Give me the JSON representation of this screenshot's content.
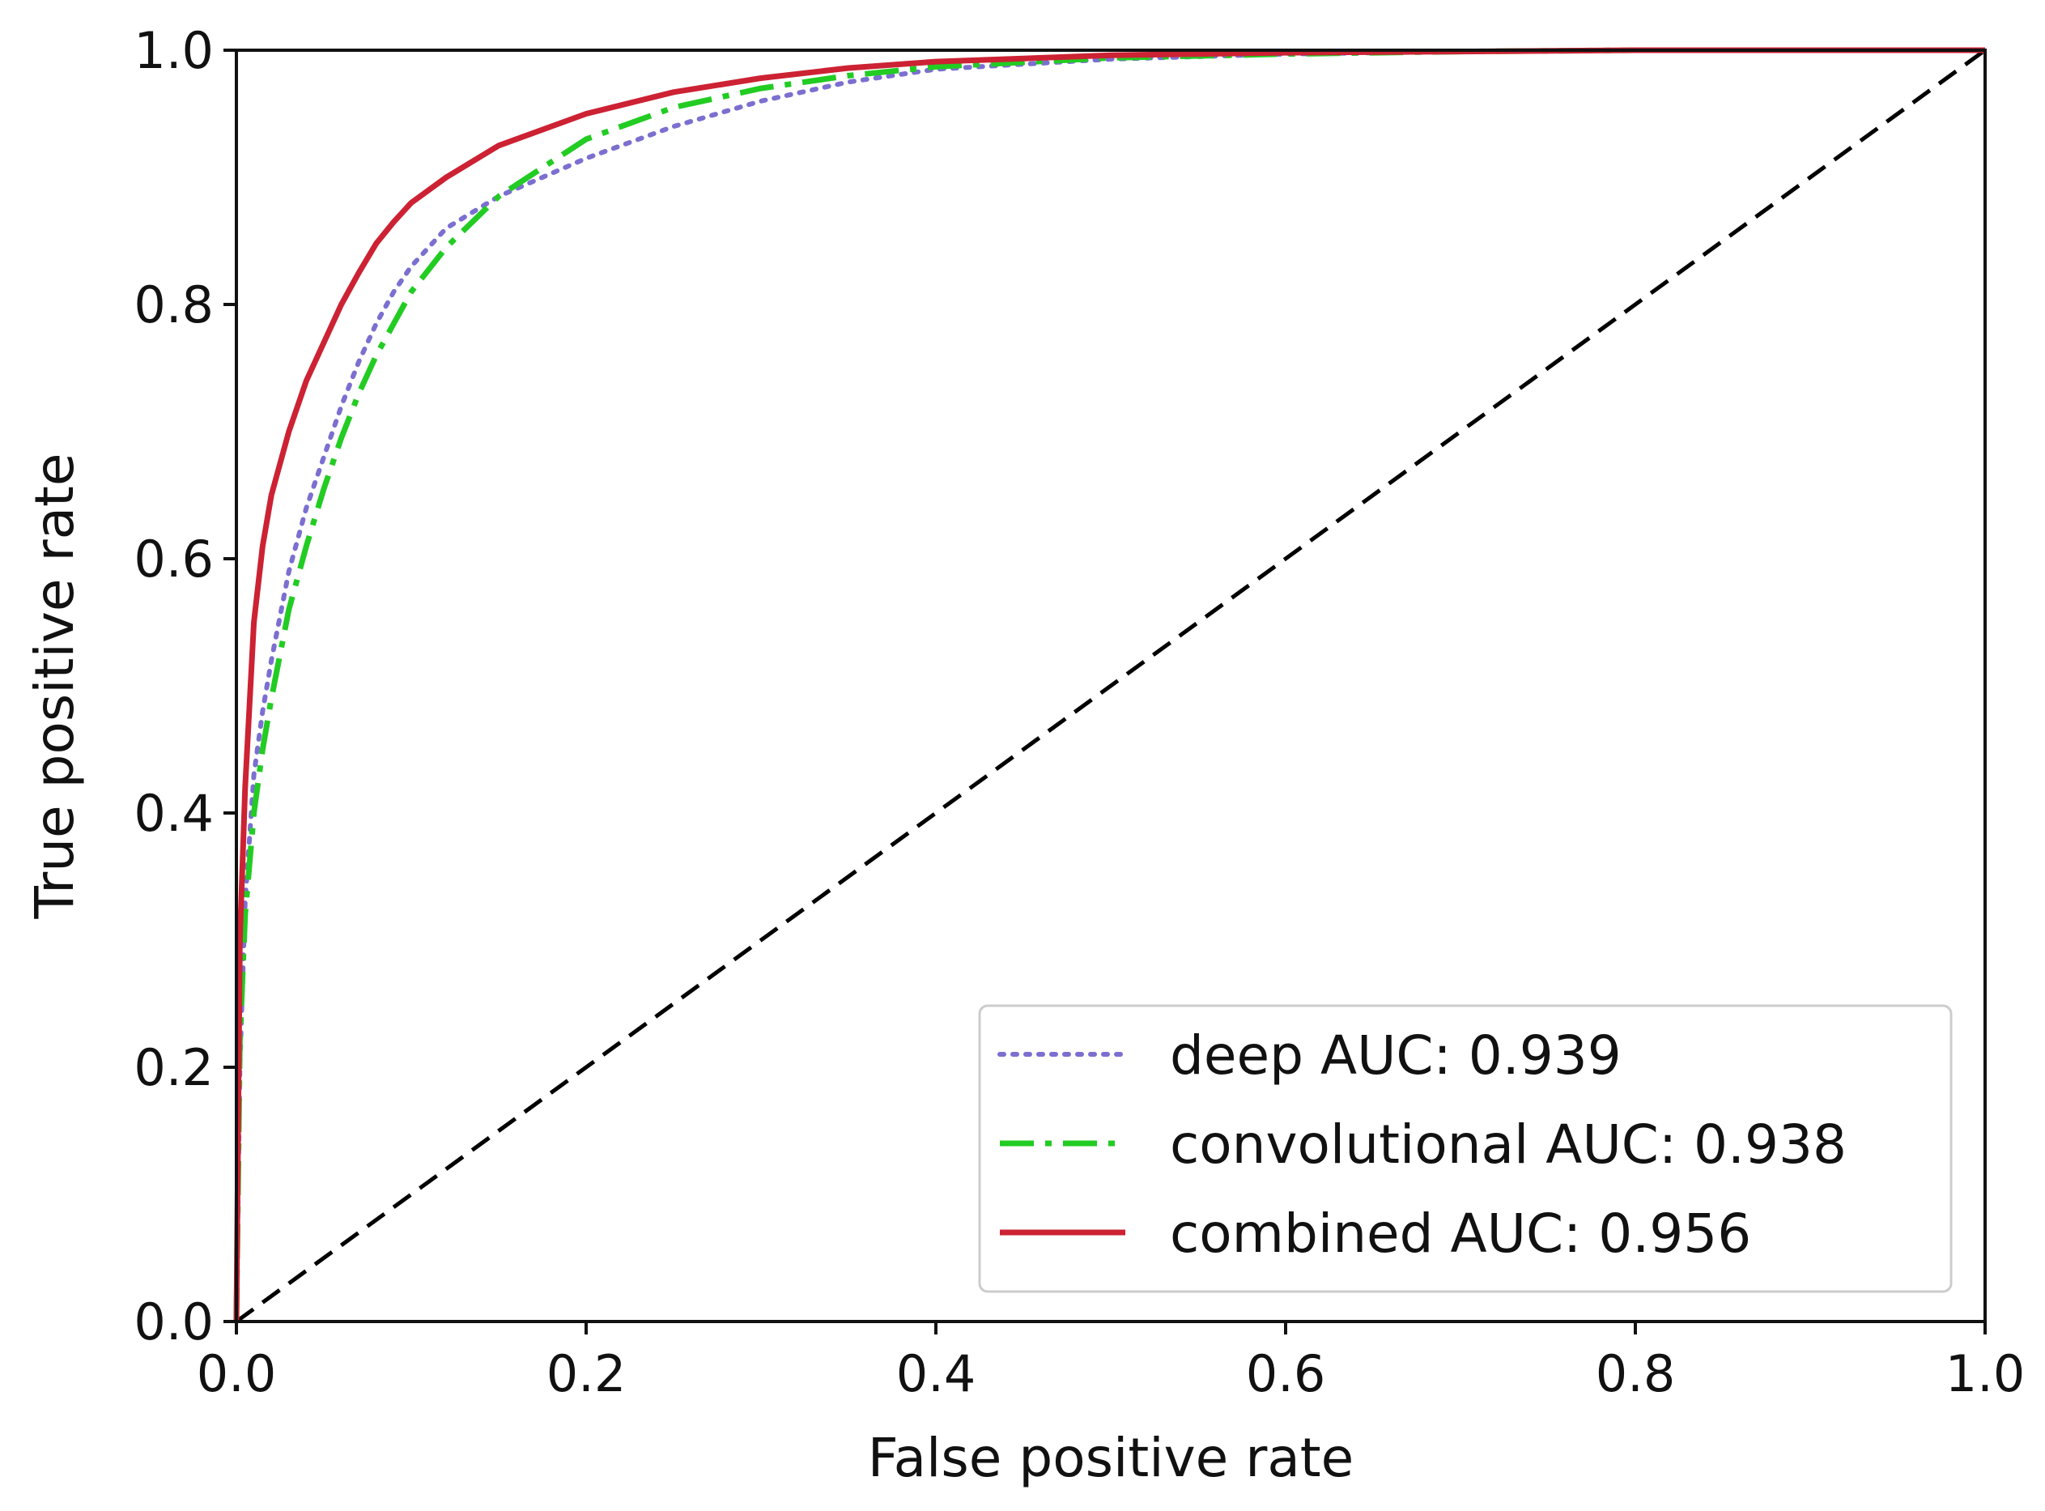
{
  "chart_data": {
    "type": "line",
    "title": "",
    "xlabel": "False positive rate",
    "ylabel": "True positive rate",
    "xlim": [
      0.0,
      1.0
    ],
    "ylim": [
      0.0,
      1.0
    ],
    "grid": false,
    "legend_position": "lower-right",
    "xticks": [
      "0.0",
      "0.2",
      "0.4",
      "0.6",
      "0.8",
      "1.0"
    ],
    "yticks": [
      "0.0",
      "0.2",
      "0.4",
      "0.6",
      "0.8",
      "1.0"
    ],
    "series": [
      {
        "name": "deep",
        "label": "deep AUC: 0.939",
        "color": "#7b6fd0",
        "style": "dotted",
        "x": [
          0.0,
          0.002,
          0.005,
          0.01,
          0.015,
          0.02,
          0.03,
          0.04,
          0.05,
          0.06,
          0.07,
          0.08,
          0.09,
          0.1,
          0.12,
          0.15,
          0.2,
          0.25,
          0.3,
          0.35,
          0.4,
          0.5,
          0.6,
          0.7,
          0.8,
          0.9,
          1.0
        ],
        "y": [
          0.0,
          0.2,
          0.33,
          0.43,
          0.48,
          0.52,
          0.59,
          0.64,
          0.68,
          0.72,
          0.755,
          0.785,
          0.81,
          0.83,
          0.86,
          0.885,
          0.915,
          0.94,
          0.96,
          0.975,
          0.985,
          0.993,
          0.997,
          0.999,
          1.0,
          1.0,
          1.0
        ]
      },
      {
        "name": "convolutional",
        "label": "convolutional AUC: 0.938",
        "color": "#22cc22",
        "style": "dashdot",
        "x": [
          0.0,
          0.002,
          0.005,
          0.01,
          0.015,
          0.02,
          0.03,
          0.04,
          0.05,
          0.06,
          0.07,
          0.08,
          0.09,
          0.1,
          0.12,
          0.15,
          0.2,
          0.25,
          0.3,
          0.35,
          0.4,
          0.5,
          0.6,
          0.7,
          0.8,
          0.9,
          1.0
        ],
        "y": [
          0.0,
          0.22,
          0.32,
          0.4,
          0.45,
          0.49,
          0.56,
          0.61,
          0.655,
          0.695,
          0.73,
          0.76,
          0.785,
          0.81,
          0.845,
          0.885,
          0.93,
          0.955,
          0.97,
          0.98,
          0.987,
          0.994,
          0.997,
          0.999,
          1.0,
          1.0,
          1.0
        ]
      },
      {
        "name": "combined",
        "label": "combined AUC: 0.956",
        "color": "#cc2233",
        "style": "solid",
        "x": [
          0.0,
          0.002,
          0.005,
          0.01,
          0.015,
          0.02,
          0.03,
          0.04,
          0.05,
          0.06,
          0.07,
          0.08,
          0.09,
          0.1,
          0.12,
          0.15,
          0.2,
          0.25,
          0.3,
          0.35,
          0.4,
          0.5,
          0.6,
          0.7,
          0.8,
          0.9,
          1.0
        ],
        "y": [
          0.0,
          0.3,
          0.42,
          0.55,
          0.61,
          0.65,
          0.7,
          0.74,
          0.77,
          0.8,
          0.825,
          0.848,
          0.865,
          0.88,
          0.9,
          0.925,
          0.95,
          0.967,
          0.978,
          0.986,
          0.991,
          0.996,
          0.998,
          0.999,
          1.0,
          1.0,
          1.0
        ]
      },
      {
        "name": "chance",
        "label": "",
        "color": "#000000",
        "style": "dashed",
        "x": [
          0.0,
          1.0
        ],
        "y": [
          0.0,
          1.0
        ]
      }
    ]
  }
}
